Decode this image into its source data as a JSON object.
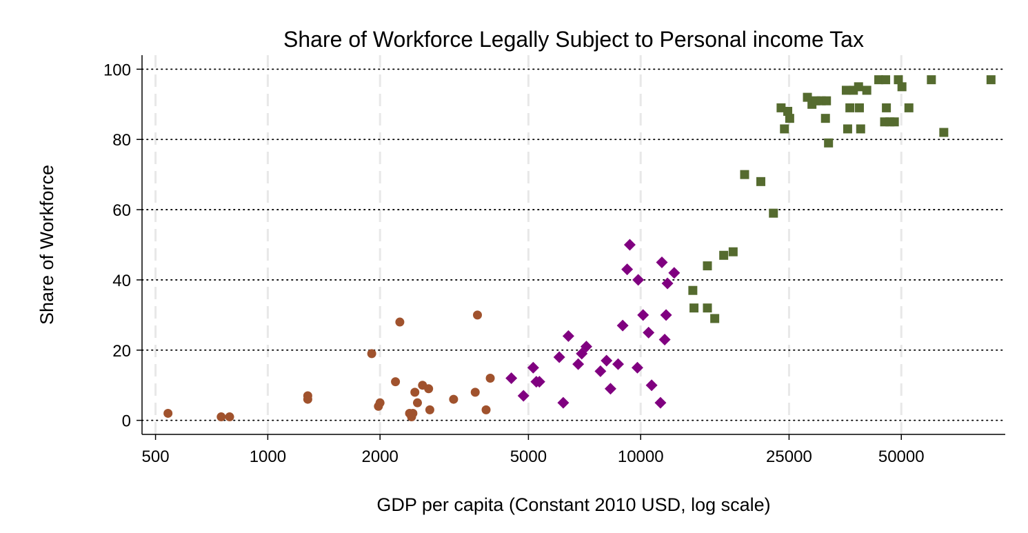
{
  "chart_data": {
    "type": "scatter",
    "title": "Share of Workforce Legally Subject to Personal income Tax",
    "xlabel": "GDP per capita (Constant 2010 USD, log scale)",
    "ylabel": "Share of Workforce",
    "x_scale": "log",
    "xlim": [
      460,
      95000
    ],
    "ylim": [
      -4,
      104
    ],
    "x_ticks": [
      500,
      1000,
      2000,
      5000,
      10000,
      25000,
      50000
    ],
    "x_tick_labels": [
      "500",
      "1000",
      "2000",
      "5000",
      "10000",
      "25000",
      "50000"
    ],
    "y_ticks": [
      0,
      20,
      40,
      60,
      80,
      100
    ],
    "y_tick_labels": [
      "0",
      "20",
      "40",
      "60",
      "80",
      "100"
    ],
    "grid": {
      "horizontal": true,
      "vertical": true
    },
    "legend": "none",
    "series": [
      {
        "marker": "circle",
        "color": "#a0522d",
        "points": [
          [
            540,
            2
          ],
          [
            750,
            1
          ],
          [
            790,
            1
          ],
          [
            1280,
            6
          ],
          [
            1280,
            7
          ],
          [
            1900,
            19
          ],
          [
            1980,
            4
          ],
          [
            2000,
            5
          ],
          [
            2200,
            11
          ],
          [
            2260,
            28
          ],
          [
            2400,
            2
          ],
          [
            2430,
            1
          ],
          [
            2450,
            2
          ],
          [
            2480,
            8
          ],
          [
            2520,
            5
          ],
          [
            2600,
            10
          ],
          [
            2700,
            9
          ],
          [
            2720,
            3
          ],
          [
            3150,
            6
          ],
          [
            3600,
            8
          ],
          [
            3650,
            30
          ],
          [
            3850,
            3
          ],
          [
            3950,
            12
          ]
        ]
      },
      {
        "marker": "diamond",
        "color": "#800080",
        "points": [
          [
            4500,
            12
          ],
          [
            4850,
            7
          ],
          [
            5150,
            15
          ],
          [
            5250,
            11
          ],
          [
            5350,
            11
          ],
          [
            6050,
            18
          ],
          [
            6200,
            5
          ],
          [
            6400,
            24
          ],
          [
            6800,
            16
          ],
          [
            6950,
            19
          ],
          [
            7150,
            21
          ],
          [
            7800,
            14
          ],
          [
            8100,
            17
          ],
          [
            8300,
            9
          ],
          [
            8700,
            16
          ],
          [
            8950,
            27
          ],
          [
            9200,
            43
          ],
          [
            9350,
            50
          ],
          [
            9800,
            15
          ],
          [
            9850,
            40
          ],
          [
            10150,
            30
          ],
          [
            10500,
            25
          ],
          [
            10700,
            10
          ],
          [
            11300,
            5
          ],
          [
            11400,
            45
          ],
          [
            11600,
            23
          ],
          [
            11700,
            30
          ],
          [
            11800,
            39
          ],
          [
            12300,
            42
          ]
        ]
      },
      {
        "marker": "square",
        "color": "#556b2f",
        "points": [
          [
            13800,
            37
          ],
          [
            13900,
            32
          ],
          [
            15100,
            44
          ],
          [
            15100,
            32
          ],
          [
            15800,
            29
          ],
          [
            16700,
            47
          ],
          [
            17700,
            48
          ],
          [
            19000,
            70
          ],
          [
            21000,
            68
          ],
          [
            22700,
            59
          ],
          [
            23800,
            89
          ],
          [
            24300,
            83
          ],
          [
            24800,
            88
          ],
          [
            25100,
            86
          ],
          [
            28000,
            92
          ],
          [
            28800,
            90
          ],
          [
            29500,
            91
          ],
          [
            30500,
            91
          ],
          [
            31300,
            86
          ],
          [
            31500,
            91
          ],
          [
            31900,
            79
          ],
          [
            35600,
            94
          ],
          [
            35900,
            83
          ],
          [
            36400,
            89
          ],
          [
            37200,
            94
          ],
          [
            38400,
            95
          ],
          [
            38600,
            89
          ],
          [
            38900,
            83
          ],
          [
            40400,
            94
          ],
          [
            43500,
            97
          ],
          [
            45400,
            97
          ],
          [
            45100,
            85
          ],
          [
            45600,
            89
          ],
          [
            46600,
            85
          ],
          [
            47900,
            85
          ],
          [
            49100,
            97
          ],
          [
            50200,
            95
          ],
          [
            52400,
            89
          ],
          [
            60200,
            97
          ],
          [
            65000,
            82
          ],
          [
            87000,
            97
          ]
        ]
      }
    ]
  }
}
